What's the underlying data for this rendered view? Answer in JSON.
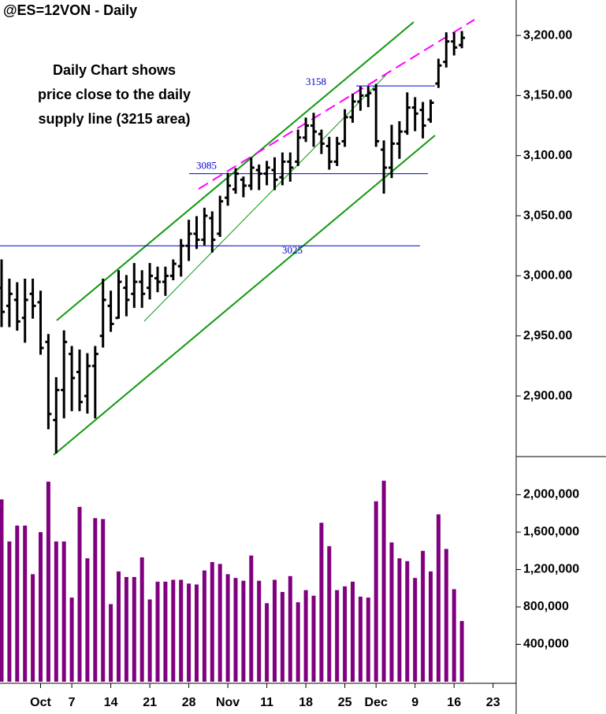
{
  "chart_data": {
    "type": "ohlc",
    "title": "@ES=12VON - Daily",
    "annotation": [
      "Daily Chart shows",
      "price close to the daily",
      "supply line (3215 area)"
    ],
    "categories": [
      null,
      null,
      null,
      null,
      null,
      "Oct",
      null,
      null,
      null,
      "7",
      null,
      null,
      null,
      null,
      "14",
      null,
      null,
      null,
      null,
      "21",
      null,
      null,
      null,
      null,
      "28",
      null,
      null,
      null,
      null,
      "Nov",
      null,
      null,
      null,
      null,
      "11",
      null,
      null,
      null,
      null,
      "18",
      null,
      null,
      null,
      null,
      "25",
      null,
      null,
      null,
      "Dec",
      null,
      null,
      null,
      null,
      "9",
      null,
      null,
      null,
      null,
      "16",
      null,
      null,
      null,
      null,
      "23",
      null,
      null
    ],
    "open": [
      2990,
      2975,
      2980,
      2965,
      2985,
      2978,
      2945,
      2880,
      2905,
      2935,
      2920,
      2900,
      2925,
      2950,
      2975,
      2965,
      2990,
      2985,
      2995,
      2990,
      2998,
      2995,
      3000,
      3008,
      3025,
      3035,
      3030,
      3048,
      3035,
      3065,
      3072,
      3080,
      3075,
      3088,
      3085,
      3088,
      3082,
      3095,
      3095,
      3115,
      3125,
      3118,
      3108,
      3095,
      3112,
      3132,
      3145,
      3150,
      3155,
      3105,
      3090,
      3110,
      3120,
      3140,
      3138,
      3130,
      3160,
      3178,
      3195,
      3192,
      null,
      null,
      null,
      null,
      null,
      null
    ],
    "high": [
      3013,
      2997,
      2994,
      2997,
      2997,
      2987,
      2951,
      2915,
      2954,
      2941,
      2938,
      2935,
      2941,
      2997,
      2987,
      3004,
      3000,
      3010,
      3004,
      3010,
      3007,
      3007,
      3013,
      3030,
      3046,
      3049,
      3056,
      3053,
      3066,
      3085,
      3089,
      3082,
      3098,
      3092,
      3095,
      3098,
      3102,
      3102,
      3121,
      3131,
      3135,
      3121,
      3115,
      3115,
      3138,
      3151,
      3157,
      3157,
      3159,
      3112,
      3125,
      3128,
      3152,
      3148,
      3144,
      3146,
      3180,
      3202,
      3202,
      3203,
      null,
      null,
      null,
      null,
      null,
      null
    ],
    "low": [
      2958,
      2958,
      2955,
      2945,
      2965,
      2935,
      2873,
      2853,
      2882,
      2888,
      2888,
      2886,
      2882,
      2941,
      2954,
      2965,
      2967,
      2974,
      2974,
      2981,
      2987,
      2984,
      2997,
      3000,
      3013,
      3023,
      3026,
      3020,
      3033,
      3059,
      3069,
      3066,
      3072,
      3072,
      3076,
      3072,
      3076,
      3079,
      3092,
      3112,
      3108,
      3102,
      3089,
      3092,
      3108,
      3128,
      3138,
      3141,
      3108,
      3069,
      3082,
      3098,
      3118,
      3121,
      3115,
      3128,
      3157,
      3174,
      3184,
      3190,
      null,
      null,
      null,
      null,
      null,
      null
    ],
    "close": [
      2970,
      2985,
      2962,
      2980,
      2975,
      2940,
      2885,
      2905,
      2945,
      2915,
      2895,
      2925,
      2935,
      2980,
      2960,
      2995,
      2980,
      2995,
      2985,
      3000,
      2995,
      3000,
      3010,
      3025,
      3035,
      3030,
      3050,
      3030,
      3062,
      3075,
      3085,
      3075,
      3090,
      3085,
      3090,
      3080,
      3095,
      3090,
      3115,
      3125,
      3120,
      3110,
      3095,
      3110,
      3132,
      3145,
      3150,
      3152,
      3112,
      3090,
      3110,
      3120,
      3140,
      3135,
      3125,
      3144,
      3175,
      3195,
      3190,
      3198,
      null,
      null,
      null,
      null,
      null,
      null
    ],
    "volume": [
      1950000,
      1500000,
      1670000,
      1670000,
      1150000,
      1600000,
      2140000,
      1500000,
      1500000,
      900000,
      1870000,
      1320000,
      1750000,
      1740000,
      830000,
      1180000,
      1120000,
      1120000,
      1330000,
      880000,
      1070000,
      1070000,
      1090000,
      1090000,
      1050000,
      1040000,
      1190000,
      1280000,
      1260000,
      1150000,
      1110000,
      1080000,
      1350000,
      1080000,
      840000,
      1090000,
      960000,
      1130000,
      850000,
      980000,
      920000,
      1700000,
      1450000,
      980000,
      1020000,
      1070000,
      910000,
      900000,
      1930000,
      2150000,
      1490000,
      1320000,
      1290000,
      1110000,
      1400000,
      1180000,
      1790000,
      1420000,
      990000,
      650000,
      null,
      null,
      null,
      null,
      null,
      null
    ],
    "color": "#000000",
    "volume_color": "#800080",
    "ylim": [
      2849.6,
      3229.5
    ],
    "yticks": [
      {
        "value": 2900,
        "label": "2,900.00"
      },
      {
        "value": 2950,
        "label": "2,950.00"
      },
      {
        "value": 3000,
        "label": "3,000.00"
      },
      {
        "value": 3050,
        "label": "3,050.00"
      },
      {
        "value": 3100,
        "label": "3,100.00"
      },
      {
        "value": 3150,
        "label": "3,150.00"
      },
      {
        "value": 3200,
        "label": "3,200.00"
      }
    ],
    "volume_ylim": [
      0,
      2408000
    ],
    "volume_yticks": [
      {
        "value": 400000,
        "label": "400,000"
      },
      {
        "value": 800000,
        "label": "800,000"
      },
      {
        "value": 1200000,
        "label": "1,200,000"
      },
      {
        "value": 1600000,
        "label": "1,600,000"
      },
      {
        "value": 2000000,
        "label": "2,000,000"
      }
    ],
    "levels": [
      3158,
      3085,
      3025
    ],
    "level_color": "#0000cc"
  }
}
